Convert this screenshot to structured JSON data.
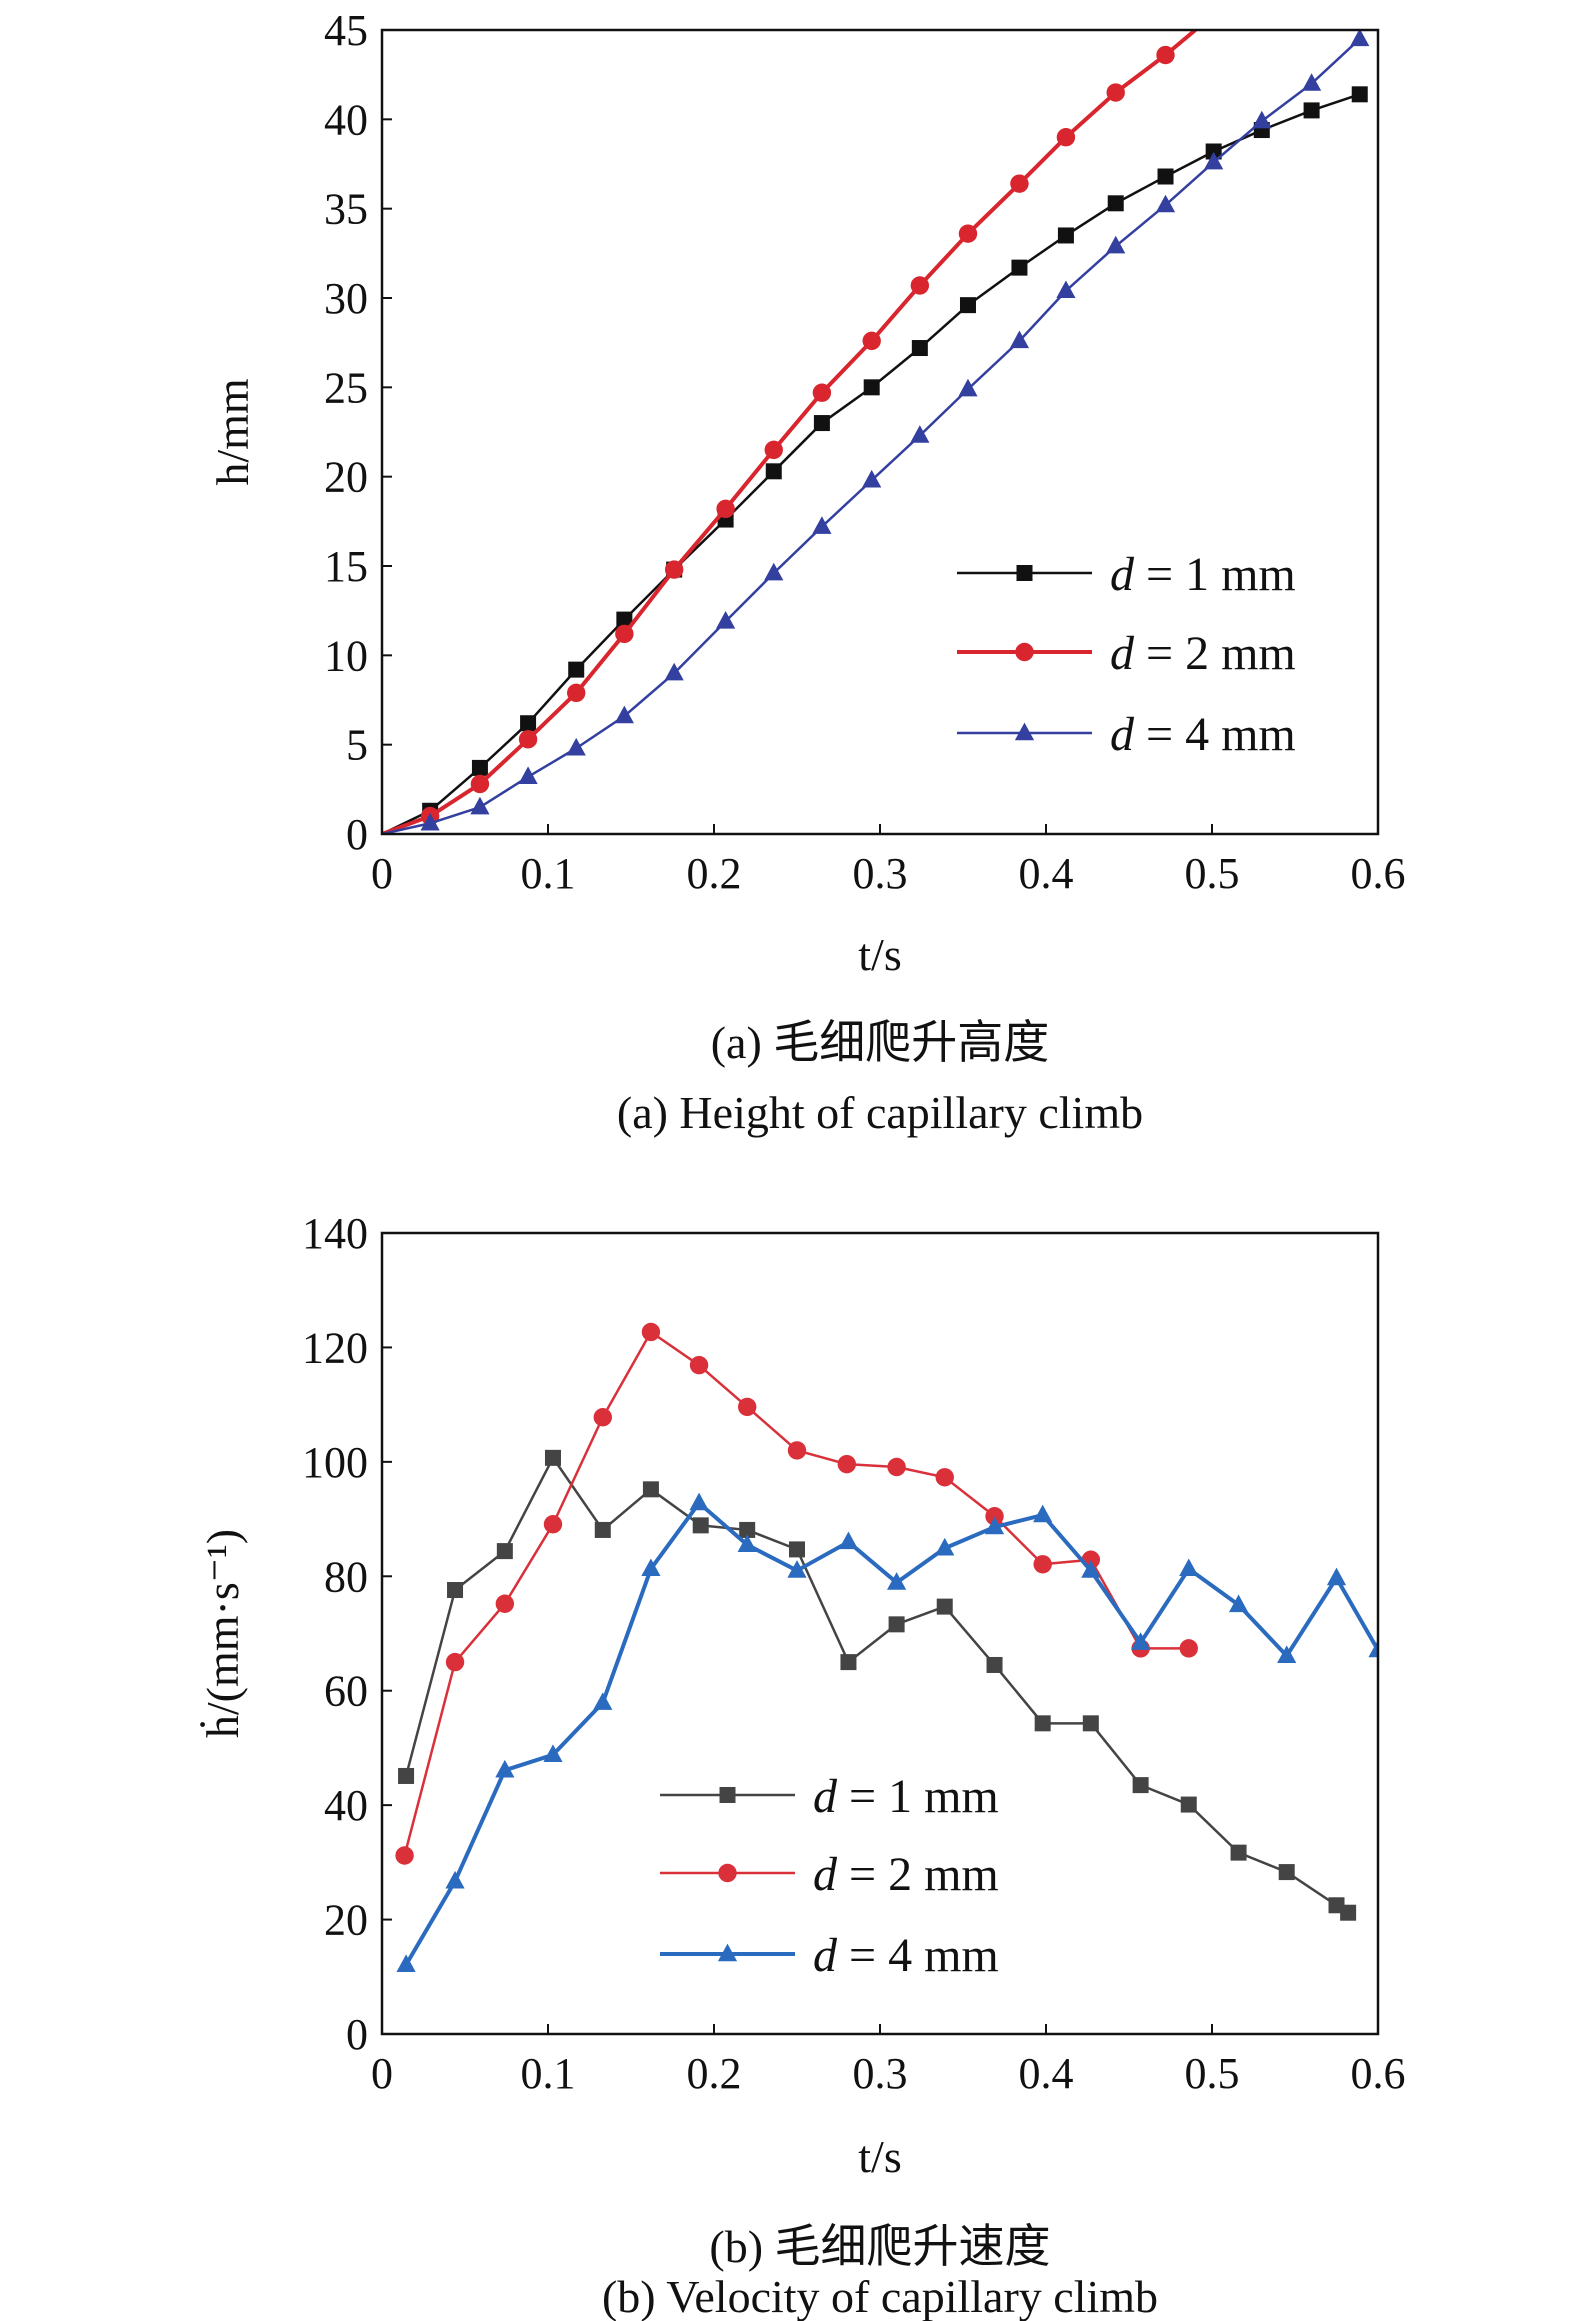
{
  "chart_data": [
    {
      "type": "line",
      "title": "",
      "caption_cn": "(a) 毛细爬升高度",
      "caption_en": "(a) Height of capillary climb",
      "xlabel": "t/s",
      "ylabel": "h/mm",
      "xlim": [
        0,
        0.6
      ],
      "ylim": [
        0,
        45
      ],
      "xticks": [
        "0",
        "0.1",
        "0.2",
        "0.3",
        "0.4",
        "0.5",
        "0.6"
      ],
      "yticks": [
        "0",
        "5",
        "10",
        "15",
        "20",
        "25",
        "30",
        "35",
        "40",
        "45"
      ],
      "grid": false,
      "legend_position": "bottom-right",
      "series": [
        {
          "name": "d = 1 mm",
          "color": "#111111",
          "marker": "square",
          "x": [
            0,
            0.029,
            0.059,
            0.088,
            0.117,
            0.146,
            0.176,
            0.207,
            0.236,
            0.265,
            0.295,
            0.324,
            0.353,
            0.384,
            0.412,
            0.442,
            0.472,
            0.501,
            0.53,
            0.56,
            0.589
          ],
          "y": [
            0,
            1.3,
            3.7,
            6.2,
            9.2,
            12.0,
            14.8,
            17.6,
            20.3,
            23.0,
            25.0,
            27.2,
            29.6,
            31.7,
            33.5,
            35.3,
            36.8,
            38.2,
            39.4,
            40.5,
            41.4
          ]
        },
        {
          "name": "d = 2 mm",
          "color": "#d9262e",
          "marker": "circle",
          "x": [
            0,
            0.029,
            0.059,
            0.088,
            0.117,
            0.146,
            0.176,
            0.207,
            0.236,
            0.265,
            0.295,
            0.324,
            0.353,
            0.384,
            0.412,
            0.442,
            0.472,
            0.49
          ],
          "y": [
            0,
            1.0,
            2.8,
            5.3,
            7.9,
            11.2,
            14.8,
            18.2,
            21.5,
            24.7,
            27.6,
            30.7,
            33.6,
            36.4,
            39.0,
            41.5,
            43.6,
            45
          ]
        },
        {
          "name": "d = 4 mm",
          "color": "#3340a0",
          "marker": "triangle",
          "x": [
            0,
            0.029,
            0.059,
            0.088,
            0.117,
            0.146,
            0.176,
            0.207,
            0.236,
            0.265,
            0.295,
            0.324,
            0.353,
            0.384,
            0.412,
            0.442,
            0.472,
            0.501,
            0.53,
            0.56,
            0.589
          ],
          "y": [
            0,
            0.6,
            1.5,
            3.2,
            4.8,
            6.6,
            9.0,
            11.9,
            14.6,
            17.2,
            19.8,
            22.3,
            24.9,
            27.6,
            30.4,
            32.9,
            35.2,
            37.6,
            39.9,
            42.0,
            44.5
          ]
        }
      ]
    },
    {
      "type": "line",
      "title": "",
      "caption_cn": "(b) 毛细爬升速度",
      "caption_en": "(b) Velocity of capillary climb",
      "xlabel": "t/s",
      "ylabel": "ḣ/(mm·s⁻¹)",
      "xlim": [
        0,
        0.6
      ],
      "ylim": [
        0,
        140
      ],
      "xticks": [
        "0",
        "0.1",
        "0.2",
        "0.3",
        "0.4",
        "0.5",
        "0.6"
      ],
      "yticks": [
        "0",
        "20",
        "40",
        "60",
        "80",
        "100",
        "120",
        "140"
      ],
      "grid": false,
      "legend_position": "bottom-center",
      "series": [
        {
          "name": "d = 1 mm",
          "color": "#444444",
          "marker": "square",
          "x": [
            0.0145,
            0.044,
            0.074,
            0.103,
            0.133,
            0.162,
            0.192,
            0.22,
            0.25,
            0.281,
            0.31,
            0.339,
            0.369,
            0.398,
            0.427,
            0.457,
            0.486,
            0.516,
            0.545,
            0.575,
            0.582
          ],
          "y": [
            45.1,
            77.6,
            84.4,
            100.7,
            88.1,
            95.2,
            88.9,
            88.1,
            84.7,
            65.0,
            71.6,
            74.7,
            64.5,
            54.3,
            54.3,
            43.5,
            40.1,
            31.7,
            28.3,
            22.5,
            21.2
          ]
        },
        {
          "name": "d = 2 mm",
          "color": "#d9303a",
          "marker": "circle",
          "x": [
            0.0136,
            0.044,
            0.074,
            0.103,
            0.133,
            0.162,
            0.191,
            0.22,
            0.25,
            0.28,
            0.31,
            0.339,
            0.369,
            0.398,
            0.427,
            0.457,
            0.486
          ],
          "y": [
            31.2,
            65.0,
            75.2,
            89.1,
            107.8,
            122.7,
            116.9,
            109.6,
            102.0,
            99.6,
            99.1,
            97.3,
            90.5,
            82.1,
            82.9,
            67.4,
            67.4
          ]
        },
        {
          "name": "d = 4 mm",
          "color": "#2a6bbf",
          "marker": "triangle",
          "x": [
            0.0145,
            0.044,
            0.074,
            0.103,
            0.133,
            0.162,
            0.191,
            0.22,
            0.25,
            0.281,
            0.31,
            0.339,
            0.369,
            0.398,
            0.427,
            0.457,
            0.486,
            0.516,
            0.545,
            0.575,
            0.6
          ],
          "y": [
            12.1,
            26.7,
            46.1,
            48.8,
            57.9,
            81.3,
            92.8,
            85.5,
            81.0,
            86.0,
            78.9,
            84.9,
            88.6,
            90.7,
            81.0,
            68.4,
            81.3,
            75.0,
            66.1,
            79.7,
            67.1
          ]
        }
      ]
    }
  ]
}
